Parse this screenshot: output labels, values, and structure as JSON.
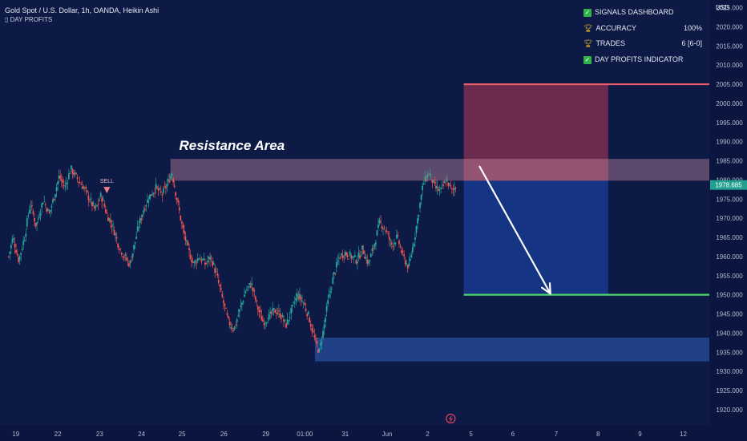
{
  "header": {
    "title": "Gold Spot / U.S. Dollar, 1h, OANDA, Heikin Ashi",
    "indicator": "DAY PROFITS"
  },
  "dashboard": {
    "rows": [
      {
        "icon": "check-icon",
        "label": "SIGNALS DASHBOARD",
        "value": ""
      },
      {
        "icon": "trophy-icon",
        "label": "ACCURACY",
        "value": "100%"
      },
      {
        "icon": "trophy-icon",
        "label": "TRADES",
        "value": "6 [6-0]"
      },
      {
        "icon": "check-icon",
        "label": "DAY PROFITS INDICATOR",
        "value": ""
      }
    ]
  },
  "chart_data": {
    "type": "candlestick",
    "currency": "USD",
    "y_ticks": [
      2025,
      2020,
      2015,
      2010,
      2005,
      2000,
      1995,
      1990,
      1985,
      1980,
      1975,
      1970,
      1965,
      1960,
      1955,
      1950,
      1945,
      1940,
      1935,
      1930,
      1925,
      1920
    ],
    "y_tick_labels": [
      "2025.000",
      "2020.000",
      "2015.000",
      "2010.000",
      "2005.000",
      "2000.000",
      "1995.000",
      "1990.000",
      "1985.000",
      "1980.000",
      "1975.000",
      "1970.000",
      "1965.000",
      "1960.000",
      "1955.000",
      "1950.000",
      "1945.000",
      "1940.000",
      "1935.000",
      "1930.000",
      "1925.000",
      "1920.000"
    ],
    "ylim": [
      1916,
      2027
    ],
    "x_labels": [
      "19",
      "22",
      "23",
      "24",
      "25",
      "26",
      "29",
      "01:00",
      "31",
      "Jun",
      "2",
      "5",
      "6",
      "7",
      "8",
      "9",
      "12"
    ],
    "x_label_positions": [
      0.5,
      3.4,
      6.3,
      9.2,
      12.0,
      14.9,
      17.8,
      20.5,
      23.3,
      26.2,
      29.0,
      32.0,
      34.9,
      37.9,
      40.8,
      43.7,
      46.7
    ],
    "x_range": [
      -0.6,
      48.5
    ],
    "current_price": {
      "value": 1978.685,
      "label": "1978.685"
    },
    "annotation": "Resistance Area",
    "sell_label": "SELL",
    "sell_signal": {
      "x": 6.8,
      "y": 1976.5
    },
    "zones": {
      "resistance": {
        "x_start": 11.2,
        "x_end": 48.5,
        "y_low": 1979.8,
        "y_high": 1985.5
      },
      "support": {
        "x_start": 21.2,
        "x_end": 48.5,
        "y_low": 1932.6,
        "y_high": 1938.8
      },
      "stop_loss_box": {
        "x_start": 31.5,
        "x_end": 41.5,
        "y_low": 1979.8,
        "y_high": 2005
      },
      "take_profit_box": {
        "x_start": 31.5,
        "x_end": 41.5,
        "y_low": 1950,
        "y_high": 1979.8
      }
    },
    "levels": {
      "stop_loss": 2005,
      "take_profit": 1950
    },
    "arrow": {
      "from": {
        "x": 32.6,
        "y": 1983.5
      },
      "to": {
        "x": 37.5,
        "y": 1950.3
      }
    },
    "price_path": [
      [
        0,
        1960
      ],
      [
        0.3,
        1965
      ],
      [
        0.7,
        1959
      ],
      [
        1.1,
        1965
      ],
      [
        1.5,
        1974
      ],
      [
        1.9,
        1968
      ],
      [
        2.4,
        1975
      ],
      [
        2.8,
        1971
      ],
      [
        3.1,
        1975
      ],
      [
        3.5,
        1981
      ],
      [
        3.9,
        1978
      ],
      [
        4.3,
        1983
      ],
      [
        4.8,
        1980
      ],
      [
        5.2,
        1978
      ],
      [
        5.6,
        1975
      ],
      [
        6.0,
        1972
      ],
      [
        6.4,
        1976
      ],
      [
        6.8,
        1971
      ],
      [
        7.2,
        1968
      ],
      [
        7.6,
        1963
      ],
      [
        8.0,
        1960
      ],
      [
        8.4,
        1958
      ],
      [
        8.7,
        1963
      ],
      [
        9.0,
        1968
      ],
      [
        9.4,
        1973
      ],
      [
        9.8,
        1976
      ],
      [
        10.2,
        1978
      ],
      [
        10.6,
        1976
      ],
      [
        11.0,
        1979
      ],
      [
        11.3,
        1982
      ],
      [
        11.6,
        1976
      ],
      [
        12.0,
        1968
      ],
      [
        12.4,
        1962
      ],
      [
        12.8,
        1958
      ],
      [
        13.2,
        1960
      ],
      [
        13.6,
        1958
      ],
      [
        14.0,
        1960
      ],
      [
        14.4,
        1955
      ],
      [
        14.8,
        1949
      ],
      [
        15.2,
        1943
      ],
      [
        15.6,
        1941
      ],
      [
        16.0,
        1946
      ],
      [
        16.4,
        1951
      ],
      [
        16.8,
        1953
      ],
      [
        17.2,
        1947
      ],
      [
        17.6,
        1943
      ],
      [
        18.0,
        1944
      ],
      [
        18.4,
        1946
      ],
      [
        18.8,
        1945
      ],
      [
        19.2,
        1942
      ],
      [
        19.6,
        1946
      ],
      [
        20.0,
        1950
      ],
      [
        20.4,
        1948
      ],
      [
        20.8,
        1944
      ],
      [
        21.2,
        1938
      ],
      [
        21.5,
        1935
      ],
      [
        21.8,
        1941
      ],
      [
        22.1,
        1948
      ],
      [
        22.5,
        1955
      ],
      [
        22.9,
        1960
      ],
      [
        23.3,
        1961
      ],
      [
        23.7,
        1960
      ],
      [
        24.1,
        1959
      ],
      [
        24.5,
        1962
      ],
      [
        24.9,
        1958
      ],
      [
        25.3,
        1963
      ],
      [
        25.7,
        1969
      ],
      [
        26.1,
        1967
      ],
      [
        26.5,
        1963
      ],
      [
        26.9,
        1965
      ],
      [
        27.3,
        1960
      ],
      [
        27.7,
        1957
      ],
      [
        28.1,
        1965
      ],
      [
        28.4,
        1972
      ],
      [
        28.7,
        1979
      ],
      [
        29.1,
        1982
      ],
      [
        29.5,
        1978
      ],
      [
        29.9,
        1977
      ],
      [
        30.3,
        1980
      ],
      [
        30.7,
        1977
      ],
      [
        31.0,
        1978.7
      ]
    ]
  }
}
